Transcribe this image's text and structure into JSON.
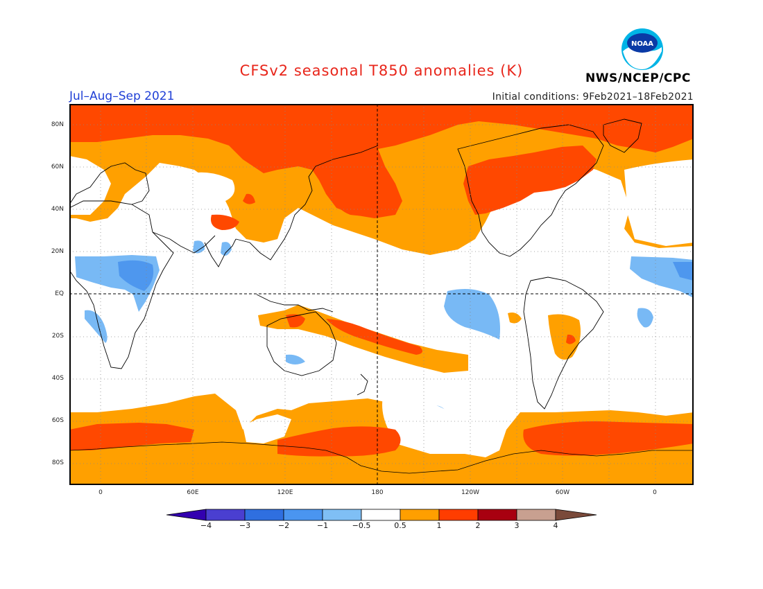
{
  "header": {
    "title": "CFSv2 seasonal T850 anomalies (K)",
    "season": "Jul–Aug–Sep 2021",
    "initial_conditions": "Initial conditions: 9Feb2021–18Feb2021",
    "org": "NWS/NCEP/CPC",
    "logo_text": "NOAA"
  },
  "axes": {
    "lat_labels": [
      "80N",
      "60N",
      "40N",
      "20N",
      "EQ",
      "20S",
      "40S",
      "60S",
      "80S"
    ],
    "lon_labels": [
      "0",
      "60E",
      "120E",
      "180",
      "120W",
      "60W",
      "0"
    ]
  },
  "colorbar": {
    "labels": [
      "−4",
      "−3",
      "−2",
      "−1",
      "−0.5",
      "0.5",
      "1",
      "2",
      "3",
      "4"
    ],
    "colors": [
      "#3300b0",
      "#4a3fd0",
      "#2f6fe0",
      "#4a95f0",
      "#7fbff5",
      "#ffffff",
      "#ff9f00",
      "#ff3d00",
      "#a80010",
      "#c8a090",
      "#7a4a3a"
    ]
  },
  "colors": {
    "ocean_neutral": "#ffffff",
    "warm_light": "#ffa000",
    "warm_mid": "#ff4800",
    "cool_light": "#78b9f5",
    "cool_mid": "#4e97ee"
  }
}
